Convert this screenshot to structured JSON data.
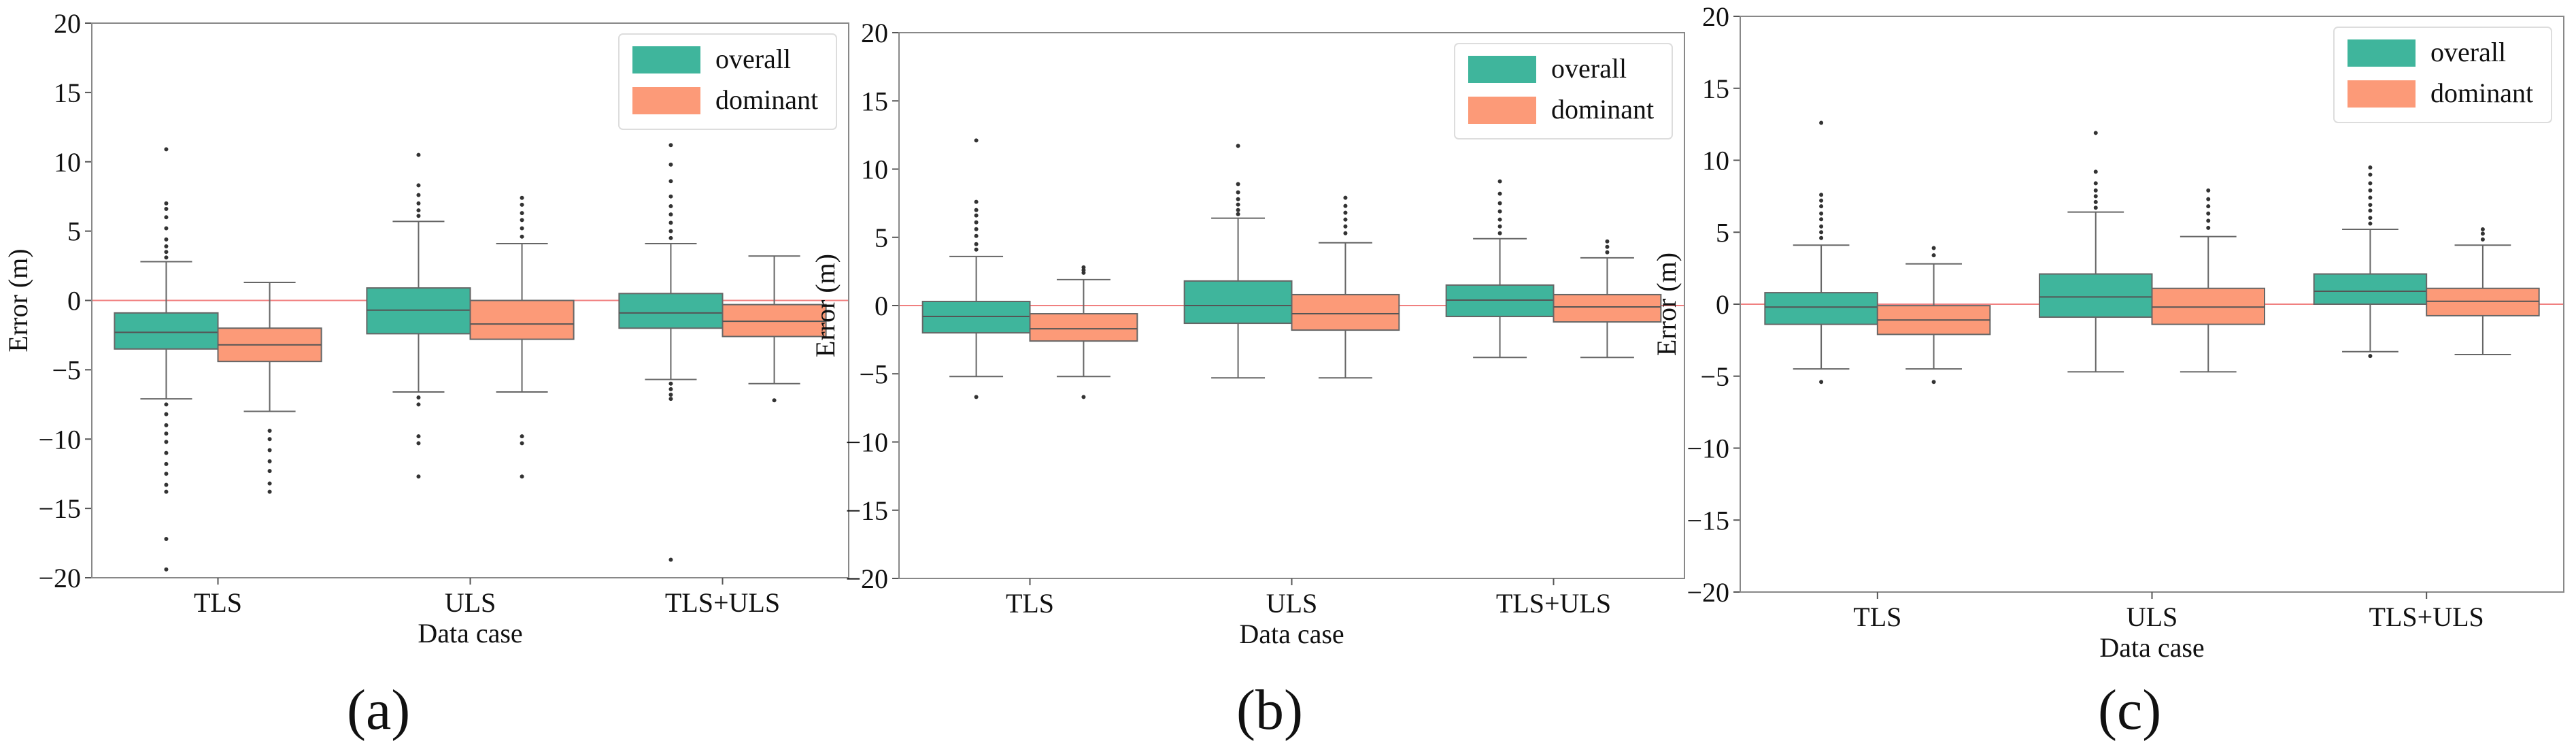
{
  "colors": {
    "overall": "#3fb59c",
    "dominant": "#fc9a78",
    "zero_line": "#f08080",
    "axis": "#555555"
  },
  "chart_data": [
    {
      "type": "box",
      "panel": "(a)",
      "xlabel": "Data case",
      "ylabel": "Error (m)",
      "ylim": [
        -20,
        20
      ],
      "yticks": [
        -20,
        -15,
        -10,
        -5,
        0,
        5,
        10,
        15,
        20
      ],
      "categories": [
        "TLS",
        "ULS",
        "TLS+ULS"
      ],
      "legend": [
        "overall",
        "dominant"
      ],
      "legend_position": "top-right",
      "series": [
        {
          "name": "overall",
          "boxes": [
            {
              "q1": -3.5,
              "median": -2.3,
              "q3": -0.9,
              "whisker_low": -7.1,
              "whisker_high": 2.8,
              "outliers": [
                -7.5,
                -8.2,
                -9.0,
                -9.6,
                -10.2,
                -11.0,
                -11.8,
                -12.5,
                -13.3,
                -13.8,
                -17.2,
                -19.4,
                3.1,
                3.5,
                3.9,
                4.4,
                5.2,
                6.0,
                6.6,
                7.0,
                10.9
              ]
            },
            {
              "q1": -2.4,
              "median": -0.7,
              "q3": 0.9,
              "whisker_low": -6.6,
              "whisker_high": 5.7,
              "outliers": [
                -7.0,
                -7.5,
                -9.8,
                -10.3,
                -12.7,
                6.1,
                6.5,
                7.0,
                7.6,
                8.3,
                10.5
              ]
            },
            {
              "q1": -2.0,
              "median": -0.9,
              "q3": 0.5,
              "whisker_low": -5.7,
              "whisker_high": 4.1,
              "outliers": [
                -6.0,
                -6.4,
                -6.8,
                -7.1,
                -18.7,
                4.5,
                5.0,
                5.6,
                6.2,
                6.8,
                7.5,
                8.6,
                9.8,
                11.2
              ]
            }
          ]
        },
        {
          "name": "dominant",
          "boxes": [
            {
              "q1": -4.4,
              "median": -3.2,
              "q3": -2.0,
              "whisker_low": -8.0,
              "whisker_high": 1.3,
              "outliers": [
                -9.4,
                -10.0,
                -10.8,
                -11.6,
                -12.3,
                -13.2,
                -13.8
              ]
            },
            {
              "q1": -2.8,
              "median": -1.7,
              "q3": 0.0,
              "whisker_low": -6.6,
              "whisker_high": 4.1,
              "outliers": [
                -9.8,
                -10.3,
                -12.7,
                4.6,
                5.2,
                5.8,
                6.3,
                6.9,
                7.4
              ]
            },
            {
              "q1": -2.6,
              "median": -1.5,
              "q3": -0.3,
              "whisker_low": -6.0,
              "whisker_high": 3.2,
              "outliers": [
                -7.2
              ]
            }
          ]
        }
      ]
    },
    {
      "type": "box",
      "panel": "(b)",
      "xlabel": "Data case",
      "ylabel": "Error (m)",
      "ylim": [
        -20,
        20
      ],
      "yticks": [
        -20,
        -15,
        -10,
        -5,
        0,
        5,
        10,
        15,
        20
      ],
      "categories": [
        "TLS",
        "ULS",
        "TLS+ULS"
      ],
      "legend": [
        "overall",
        "dominant"
      ],
      "legend_position": "top-right",
      "series": [
        {
          "name": "overall",
          "boxes": [
            {
              "q1": -2.0,
              "median": -0.8,
              "q3": 0.3,
              "whisker_low": -5.2,
              "whisker_high": 3.6,
              "outliers": [
                -6.7,
                4.1,
                4.5,
                5.1,
                5.6,
                6.1,
                6.6,
                7.0,
                7.6,
                12.1
              ]
            },
            {
              "q1": -1.3,
              "median": 0.0,
              "q3": 1.8,
              "whisker_low": -5.3,
              "whisker_high": 6.4,
              "outliers": [
                6.7,
                7.0,
                7.4,
                7.8,
                8.3,
                8.9,
                11.7
              ]
            },
            {
              "q1": -0.8,
              "median": 0.4,
              "q3": 1.5,
              "whisker_low": -3.8,
              "whisker_high": 4.9,
              "outliers": [
                5.3,
                5.8,
                6.3,
                6.9,
                7.5,
                8.2,
                9.1
              ]
            }
          ]
        },
        {
          "name": "dominant",
          "boxes": [
            {
              "q1": -2.6,
              "median": -1.7,
              "q3": -0.6,
              "whisker_low": -5.2,
              "whisker_high": 1.9,
              "outliers": [
                -6.7,
                2.4,
                2.6,
                2.8
              ]
            },
            {
              "q1": -1.8,
              "median": -0.6,
              "q3": 0.8,
              "whisker_low": -5.3,
              "whisker_high": 4.6,
              "outliers": [
                5.3,
                5.8,
                6.3,
                6.8,
                7.3,
                7.9
              ]
            },
            {
              "q1": -1.2,
              "median": -0.1,
              "q3": 0.8,
              "whisker_low": -3.8,
              "whisker_high": 3.5,
              "outliers": [
                3.9,
                4.3,
                4.7
              ]
            }
          ]
        }
      ]
    },
    {
      "type": "box",
      "panel": "(c)",
      "xlabel": "Data case",
      "ylabel": "Error (m)",
      "ylim": [
        -20,
        20
      ],
      "yticks": [
        -20,
        -15,
        -10,
        -5,
        0,
        5,
        10,
        15,
        20
      ],
      "categories": [
        "TLS",
        "ULS",
        "TLS+ULS"
      ],
      "legend": [
        "overall",
        "dominant"
      ],
      "legend_position": "top-right",
      "series": [
        {
          "name": "overall",
          "boxes": [
            {
              "q1": -1.4,
              "median": -0.2,
              "q3": 0.8,
              "whisker_low": -4.5,
              "whisker_high": 4.1,
              "outliers": [
                -5.4,
                4.6,
                5.0,
                5.4,
                5.9,
                6.3,
                6.8,
                7.2,
                7.6,
                12.6
              ]
            },
            {
              "q1": -0.9,
              "median": 0.5,
              "q3": 2.1,
              "whisker_low": -4.7,
              "whisker_high": 6.4,
              "outliers": [
                6.7,
                7.1,
                7.5,
                7.9,
                8.4,
                9.2,
                11.9
              ]
            },
            {
              "q1": 0.0,
              "median": 0.9,
              "q3": 2.1,
              "whisker_low": -3.3,
              "whisker_high": 5.2,
              "outliers": [
                -3.6,
                5.6,
                6.0,
                6.5,
                6.9,
                7.4,
                7.9,
                8.4,
                9.0,
                9.5
              ]
            }
          ]
        },
        {
          "name": "dominant",
          "boxes": [
            {
              "q1": -2.1,
              "median": -1.1,
              "q3": -0.1,
              "whisker_low": -4.5,
              "whisker_high": 2.8,
              "outliers": [
                -5.4,
                3.4,
                3.9
              ]
            },
            {
              "q1": -1.4,
              "median": -0.2,
              "q3": 1.1,
              "whisker_low": -4.7,
              "whisker_high": 4.7,
              "outliers": [
                5.3,
                5.8,
                6.3,
                6.8,
                7.3,
                7.9
              ]
            },
            {
              "q1": -0.8,
              "median": 0.2,
              "q3": 1.1,
              "whisker_low": -3.5,
              "whisker_high": 4.1,
              "outliers": [
                4.5,
                4.9,
                5.2
              ]
            }
          ]
        }
      ]
    }
  ]
}
